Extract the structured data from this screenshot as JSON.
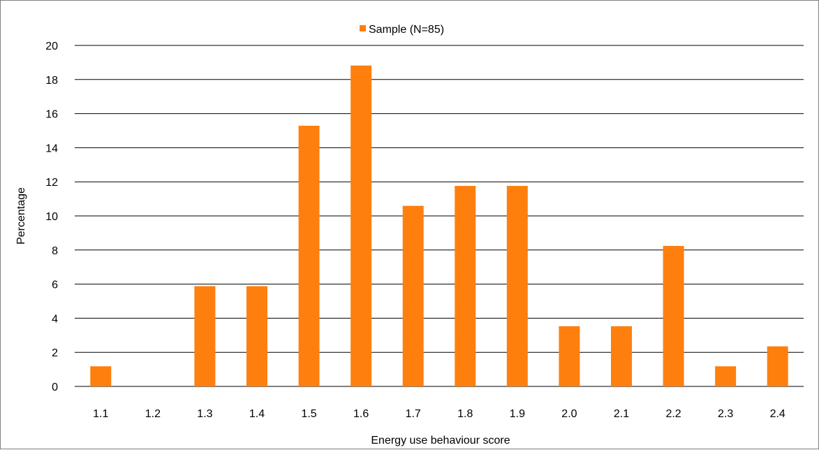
{
  "chart_data": {
    "type": "bar",
    "categories": [
      "1.1",
      "1.2",
      "1.3",
      "1.4",
      "1.5",
      "1.6",
      "1.7",
      "1.8",
      "1.9",
      "2.0",
      "2.1",
      "2.2",
      "2.3",
      "2.4"
    ],
    "series": [
      {
        "name": "Sample (N=85)",
        "values": [
          1.18,
          0,
          5.88,
          5.88,
          15.29,
          18.82,
          10.59,
          11.76,
          11.76,
          3.53,
          3.53,
          8.24,
          1.18,
          2.35
        ],
        "color": "#ff7f0e"
      }
    ],
    "xlabel": "Energy use behaviour score",
    "ylabel": "Percentage",
    "ylim": [
      0,
      20
    ],
    "yticks": [
      "0",
      "2",
      "4",
      "6",
      "8",
      "10",
      "12",
      "14",
      "16",
      "18",
      "20"
    ],
    "grid": true,
    "legend_position": "top-center"
  }
}
